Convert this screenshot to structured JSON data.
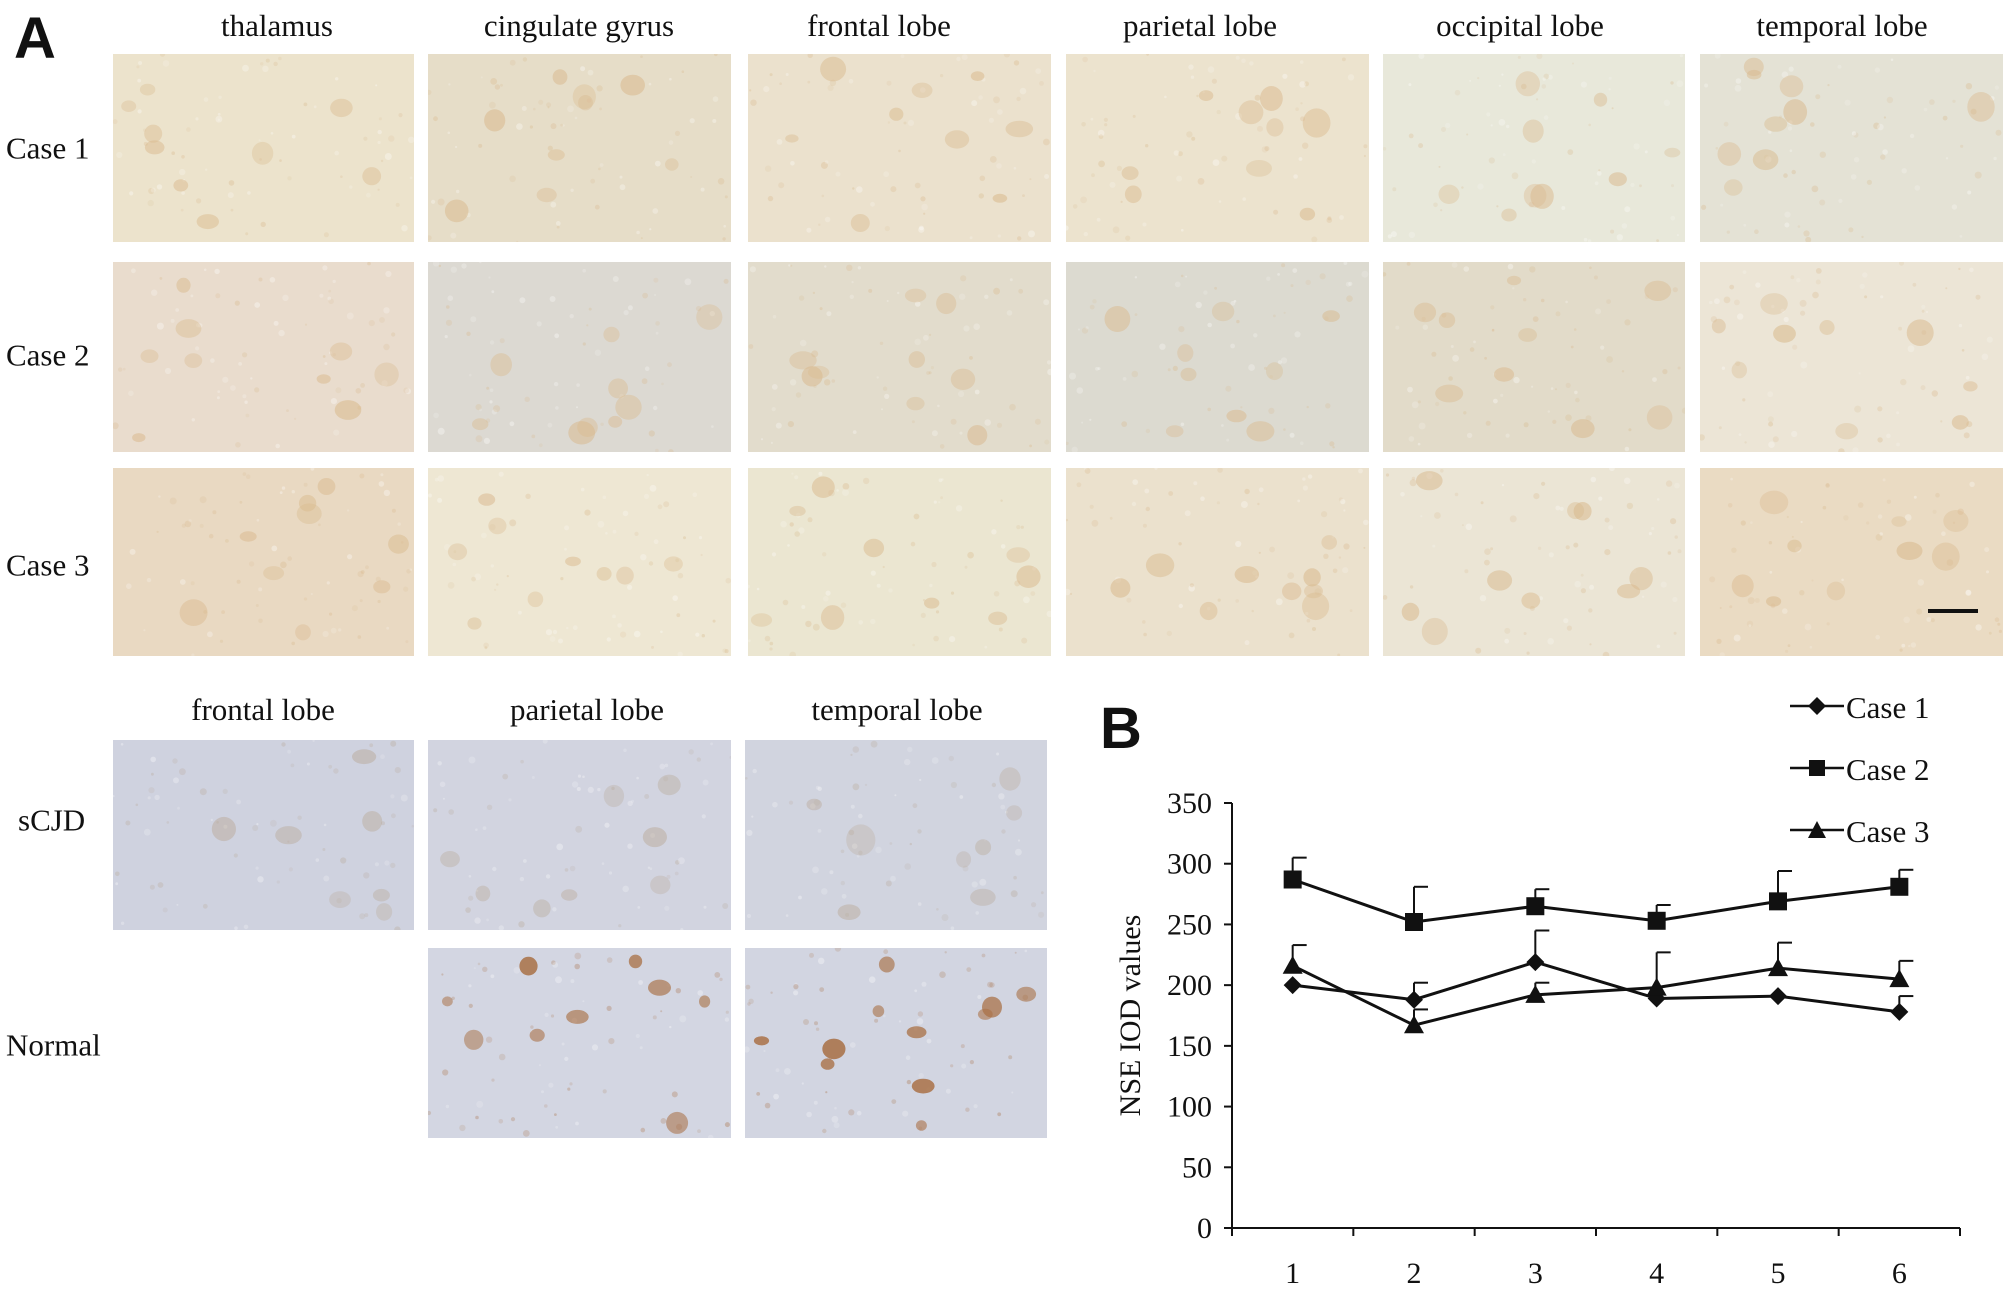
{
  "panel_a": {
    "label": "A",
    "column_headers": [
      "thalamus",
      "cingulate gyrus",
      "frontal lobe",
      "parietal lobe",
      "occipital lobe",
      "temporal lobe"
    ],
    "row_headers": [
      "Case 1",
      "Case 2",
      "Case 3"
    ],
    "lower_column_headers": [
      "frontal lobe",
      "parietal lobe",
      "temporal lobe"
    ],
    "lower_row_headers": [
      "sCJD",
      "Normal"
    ],
    "tile_colors": {
      "case1": [
        "#ece3cc",
        "#e6ddc8",
        "#ebe1cd",
        "#ece3ce",
        "#e8e8da",
        "#e4e2d5"
      ],
      "case2": [
        "#e9dccd",
        "#dcd9d2",
        "#e2dccc",
        "#dcdad0",
        "#e2dbc9",
        "#ece5d6"
      ],
      "case3": [
        "#e9d9c2",
        "#eee7d3",
        "#ebe6d1",
        "#ebe1cd",
        "#ebe5d5",
        "#eadbc3"
      ],
      "scjd": [
        "#cfd2df",
        "#d2d4e0",
        "#d1d4df"
      ],
      "normal": [
        "#d3d6e2",
        "#d2d5e1"
      ],
      "cell_warm": "#d9b98d",
      "cell_blue": "#b9a999",
      "cell_normal": "#a86f43"
    }
  },
  "panel_b": {
    "label": "B",
    "chart_data": {
      "type": "line",
      "x": [
        1,
        2,
        3,
        4,
        5,
        6
      ],
      "ylabel": "NSE IOD values",
      "xlabel": "",
      "ylim": [
        0,
        350
      ],
      "yticks": [
        0,
        50,
        100,
        150,
        200,
        250,
        300,
        350
      ],
      "xticks": [
        1,
        2,
        3,
        4,
        5,
        6
      ],
      "legend_position": "top-right",
      "series": [
        {
          "name": "Case 1",
          "marker": "diamond",
          "values": [
            200,
            188,
            219,
            189,
            191,
            178
          ],
          "errors": [
            0,
            14,
            26,
            38,
            0,
            13
          ]
        },
        {
          "name": "Case 2",
          "marker": "square",
          "values": [
            287,
            252,
            265,
            253,
            269,
            281
          ],
          "errors": [
            18,
            29,
            14,
            13,
            25,
            14
          ]
        },
        {
          "name": "Case 3",
          "marker": "triangle",
          "values": [
            216,
            167,
            192,
            198,
            214,
            205
          ],
          "errors": [
            17,
            13,
            10,
            0,
            21,
            15
          ]
        }
      ]
    }
  }
}
